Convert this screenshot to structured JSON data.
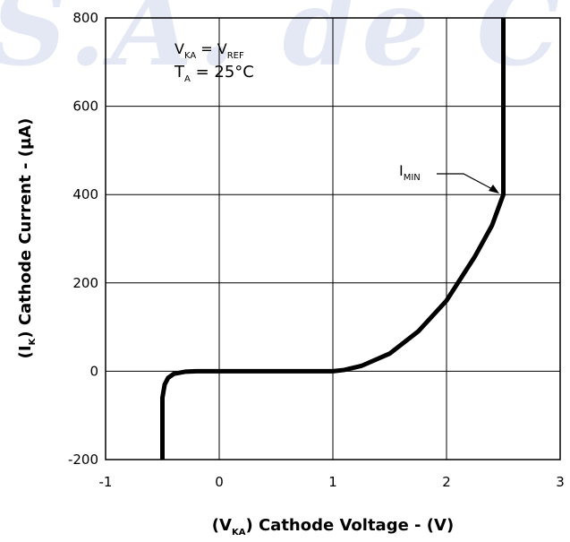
{
  "chart_data": {
    "type": "line",
    "watermark": "S.A. de C.V.",
    "x": [
      -0.5,
      -0.5,
      -0.48,
      -0.45,
      -0.4,
      -0.3,
      -0.2,
      0,
      0.5,
      1.0,
      1.1,
      1.25,
      1.5,
      1.75,
      2.0,
      2.25,
      2.4,
      2.5,
      2.5
    ],
    "values": [
      -200,
      -60,
      -30,
      -15,
      -6,
      -1,
      0,
      0,
      0,
      0,
      3,
      12,
      40,
      90,
      160,
      260,
      330,
      400,
      800
    ],
    "color": "#000000",
    "xlim": [
      -1,
      3
    ],
    "ylim": [
      -200,
      800
    ],
    "xticks": [
      -1,
      0,
      1,
      2,
      3
    ],
    "yticks": [
      -200,
      0,
      200,
      400,
      600,
      800
    ],
    "grid": true,
    "x_label": {
      "pre": "(V",
      "sub": "KA",
      "post": ")  Cathode Voltage - (V)"
    },
    "y_label": {
      "pre": "(I",
      "sub": "K",
      "post": ")  Cathode Current - (µA)"
    },
    "annotations": {
      "condition1": {
        "a": "V",
        "a_sub": "KA",
        "b": " = V",
        "b_sub": "REF"
      },
      "condition2": {
        "a": "T",
        "a_sub": "A",
        "b": " = 25°C"
      },
      "imin": {
        "a": "I",
        "a_sub": "MIN"
      }
    }
  }
}
